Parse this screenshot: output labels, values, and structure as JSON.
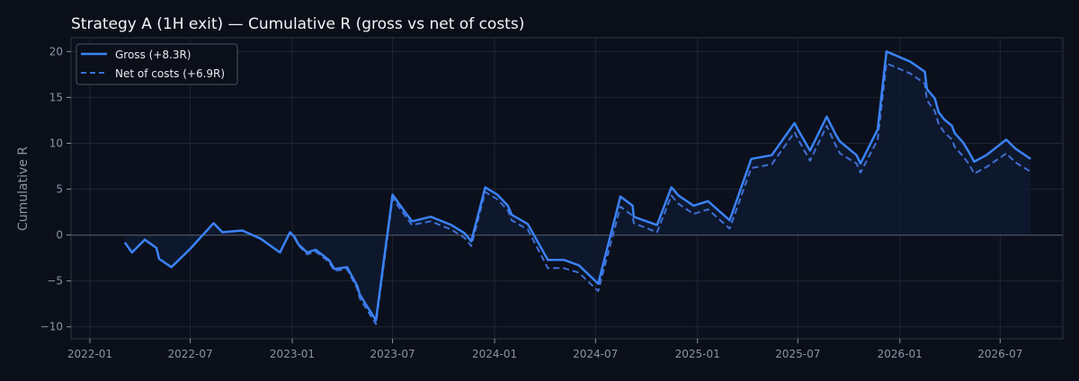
{
  "colors": {
    "background": "#0b0f19",
    "plot_bg": "#0b101c",
    "grid": "#1f2533",
    "axis": "#2e3444",
    "tick_text": "#8b93a6",
    "title_text": "#f2f4f8",
    "gross": "#3b82f6",
    "net": "#3f6fd4",
    "fill": "#0f1a30",
    "zero_line": "#4a5163"
  },
  "chart_data": {
    "type": "line",
    "title": "Strategy A (1H exit) — Cumulative R (gross vs net of costs)",
    "xlabel": "",
    "ylabel": "Cumulative R",
    "xlim": [
      "2021-11-28",
      "2026-10-22"
    ],
    "ylim": [
      -11.3,
      21.5
    ],
    "grid": true,
    "legend_position": "top-left",
    "x_ticks": [
      "2022-01",
      "2022-07",
      "2023-01",
      "2023-07",
      "2024-01",
      "2024-07",
      "2025-01",
      "2025-07",
      "2026-01",
      "2026-07"
    ],
    "y_ticks": [
      -10,
      -5,
      0,
      5,
      10,
      15,
      20
    ],
    "zero_line": true,
    "series": [
      {
        "name": "Gross (+8.3R)",
        "style": "solid",
        "points": [
          [
            "2022-03-05",
            -0.8
          ],
          [
            "2022-03-18",
            -1.9
          ],
          [
            "2022-04-10",
            -0.5
          ],
          [
            "2022-05-01",
            -1.4
          ],
          [
            "2022-05-06",
            -2.6
          ],
          [
            "2022-05-28",
            -3.5
          ],
          [
            "2022-07-01",
            -1.5
          ],
          [
            "2022-08-12",
            1.3
          ],
          [
            "2022-08-28",
            0.3
          ],
          [
            "2022-09-15",
            0.4
          ],
          [
            "2022-10-03",
            0.5
          ],
          [
            "2022-11-05",
            -0.4
          ],
          [
            "2022-12-10",
            -1.9
          ],
          [
            "2022-12-28",
            0.3
          ],
          [
            "2023-01-05",
            -0.2
          ],
          [
            "2023-01-12",
            -1.0
          ],
          [
            "2023-01-28",
            -1.9
          ],
          [
            "2023-02-12",
            -1.6
          ],
          [
            "2023-03-08",
            -2.7
          ],
          [
            "2023-03-18",
            -3.7
          ],
          [
            "2023-04-10",
            -3.5
          ],
          [
            "2023-04-28",
            -5.5
          ],
          [
            "2023-05-03",
            -6.5
          ],
          [
            "2023-06-01",
            -9.3
          ],
          [
            "2023-07-01",
            4.4
          ],
          [
            "2023-07-20",
            2.8
          ],
          [
            "2023-08-05",
            1.5
          ],
          [
            "2023-09-08",
            2.0
          ],
          [
            "2023-10-15",
            1.1
          ],
          [
            "2023-11-08",
            0.2
          ],
          [
            "2023-11-20",
            -0.7
          ],
          [
            "2023-12-15",
            5.2
          ],
          [
            "2024-01-06",
            4.4
          ],
          [
            "2024-01-25",
            3.2
          ],
          [
            "2024-02-01",
            2.2
          ],
          [
            "2024-03-01",
            1.2
          ],
          [
            "2024-04-06",
            -2.7
          ],
          [
            "2024-05-05",
            -2.7
          ],
          [
            "2024-06-01",
            -3.3
          ],
          [
            "2024-07-06",
            -5.3
          ],
          [
            "2024-08-15",
            4.2
          ],
          [
            "2024-09-06",
            3.2
          ],
          [
            "2024-09-08",
            2.0
          ],
          [
            "2024-10-20",
            1.1
          ],
          [
            "2024-11-15",
            5.2
          ],
          [
            "2024-11-28",
            4.3
          ],
          [
            "2024-12-25",
            3.2
          ],
          [
            "2025-01-20",
            3.7
          ],
          [
            "2025-02-28",
            1.6
          ],
          [
            "2025-04-08",
            8.3
          ],
          [
            "2025-05-15",
            8.7
          ],
          [
            "2025-06-25",
            12.2
          ],
          [
            "2025-07-01",
            11.5
          ],
          [
            "2025-07-23",
            9.2
          ],
          [
            "2025-08-22",
            12.9
          ],
          [
            "2025-09-08",
            10.9
          ],
          [
            "2025-09-15",
            10.2
          ],
          [
            "2025-10-15",
            8.7
          ],
          [
            "2025-10-22",
            7.8
          ],
          [
            "2025-11-22",
            11.5
          ],
          [
            "2025-12-08",
            20.0
          ],
          [
            "2026-01-20",
            18.9
          ],
          [
            "2026-02-01",
            18.4
          ],
          [
            "2026-02-15",
            17.8
          ],
          [
            "2026-02-19",
            15.9
          ],
          [
            "2026-03-05",
            14.9
          ],
          [
            "2026-03-12",
            13.4
          ],
          [
            "2026-03-22",
            12.6
          ],
          [
            "2026-04-05",
            11.9
          ],
          [
            "2026-04-10",
            11.1
          ],
          [
            "2026-04-25",
            10.1
          ],
          [
            "2026-05-06",
            9.0
          ],
          [
            "2026-05-15",
            8.0
          ],
          [
            "2026-06-06",
            8.7
          ],
          [
            "2026-07-12",
            10.4
          ],
          [
            "2026-07-29",
            9.4
          ],
          [
            "2026-08-25",
            8.3
          ]
        ]
      },
      {
        "name": "Net of costs (+6.9R)",
        "style": "dashed",
        "points": [
          [
            "2022-03-05",
            -0.8
          ],
          [
            "2022-03-18",
            -1.9
          ],
          [
            "2022-04-10",
            -0.5
          ],
          [
            "2022-05-01",
            -1.4
          ],
          [
            "2022-05-06",
            -2.6
          ],
          [
            "2022-05-28",
            -3.5
          ],
          [
            "2022-07-01",
            -1.5
          ],
          [
            "2022-08-12",
            1.3
          ],
          [
            "2022-08-28",
            0.3
          ],
          [
            "2022-09-15",
            0.4
          ],
          [
            "2022-10-03",
            0.5
          ],
          [
            "2022-11-05",
            -0.4
          ],
          [
            "2022-12-10",
            -1.9
          ],
          [
            "2022-12-28",
            0.3
          ],
          [
            "2023-01-05",
            -0.3
          ],
          [
            "2023-01-12",
            -1.1
          ],
          [
            "2023-01-28",
            -2.1
          ],
          [
            "2023-02-12",
            -1.8
          ],
          [
            "2023-03-08",
            -2.9
          ],
          [
            "2023-03-18",
            -3.9
          ],
          [
            "2023-04-10",
            -3.7
          ],
          [
            "2023-04-28",
            -5.8
          ],
          [
            "2023-05-03",
            -6.9
          ],
          [
            "2023-06-01",
            -9.7
          ],
          [
            "2023-07-01",
            4.0
          ],
          [
            "2023-07-20",
            2.4
          ],
          [
            "2023-08-05",
            1.1
          ],
          [
            "2023-09-08",
            1.5
          ],
          [
            "2023-10-15",
            0.6
          ],
          [
            "2023-11-08",
            -0.3
          ],
          [
            "2023-11-20",
            -1.2
          ],
          [
            "2023-12-15",
            4.7
          ],
          [
            "2024-01-06",
            3.9
          ],
          [
            "2024-01-25",
            2.7
          ],
          [
            "2024-02-01",
            1.6
          ],
          [
            "2024-03-01",
            0.6
          ],
          [
            "2024-04-06",
            -3.6
          ],
          [
            "2024-05-05",
            -3.6
          ],
          [
            "2024-06-01",
            -4.1
          ],
          [
            "2024-07-06",
            -6.1
          ],
          [
            "2024-08-15",
            3.1
          ],
          [
            "2024-09-06",
            2.1
          ],
          [
            "2024-09-08",
            1.3
          ],
          [
            "2024-10-20",
            0.3
          ],
          [
            "2024-11-15",
            4.3
          ],
          [
            "2024-11-28",
            3.4
          ],
          [
            "2024-12-25",
            2.3
          ],
          [
            "2025-01-20",
            2.8
          ],
          [
            "2025-02-28",
            0.7
          ],
          [
            "2025-04-08",
            7.3
          ],
          [
            "2025-05-15",
            7.7
          ],
          [
            "2025-06-25",
            11.2
          ],
          [
            "2025-07-01",
            10.5
          ],
          [
            "2025-07-23",
            8.1
          ],
          [
            "2025-08-22",
            11.9
          ],
          [
            "2025-09-08",
            9.7
          ],
          [
            "2025-09-15",
            8.9
          ],
          [
            "2025-10-15",
            7.8
          ],
          [
            "2025-10-22",
            6.8
          ],
          [
            "2025-11-22",
            10.4
          ],
          [
            "2025-12-08",
            18.7
          ],
          [
            "2026-01-20",
            17.6
          ],
          [
            "2026-02-01",
            17.1
          ],
          [
            "2026-02-15",
            16.5
          ],
          [
            "2026-02-19",
            14.7
          ],
          [
            "2026-03-05",
            13.5
          ],
          [
            "2026-03-12",
            12.1
          ],
          [
            "2026-03-22",
            11.2
          ],
          [
            "2026-04-05",
            10.4
          ],
          [
            "2026-04-10",
            9.6
          ],
          [
            "2026-04-25",
            8.6
          ],
          [
            "2026-05-06",
            7.7
          ],
          [
            "2026-05-15",
            6.7
          ],
          [
            "2026-06-06",
            7.4
          ],
          [
            "2026-07-12",
            8.9
          ],
          [
            "2026-07-29",
            7.9
          ],
          [
            "2026-08-25",
            6.9
          ]
        ]
      }
    ]
  }
}
